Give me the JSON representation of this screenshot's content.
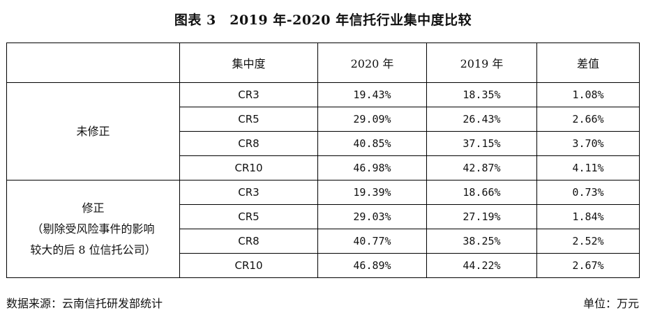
{
  "title": "图表 3　2019 年-2020 年信托行业集中度比较",
  "table": {
    "headers": [
      "",
      "集中度",
      "2020 年",
      "2019 年",
      "差值"
    ],
    "groups": [
      {
        "label_lines": [
          "未修正"
        ],
        "rows": [
          {
            "cr": "CR3",
            "y2020": "19.43%",
            "y2019": "18.35%",
            "diff": "1.08%"
          },
          {
            "cr": "CR5",
            "y2020": "29.09%",
            "y2019": "26.43%",
            "diff": "2.66%"
          },
          {
            "cr": "CR8",
            "y2020": "40.85%",
            "y2019": "37.15%",
            "diff": "3.70%"
          },
          {
            "cr": "CR10",
            "y2020": "46.98%",
            "y2019": "42.87%",
            "diff": "4.11%"
          }
        ]
      },
      {
        "label_lines": [
          "修正",
          "（剔除受风险事件的影响",
          "较大的后 8 位信托公司）"
        ],
        "rows": [
          {
            "cr": "CR3",
            "y2020": "19.39%",
            "y2019": "18.66%",
            "diff": "0.73%"
          },
          {
            "cr": "CR5",
            "y2020": "29.03%",
            "y2019": "27.19%",
            "diff": "1.84%"
          },
          {
            "cr": "CR8",
            "y2020": "40.77%",
            "y2019": "38.25%",
            "diff": "2.52%"
          },
          {
            "cr": "CR10",
            "y2020": "46.89%",
            "y2019": "44.22%",
            "diff": "2.67%"
          }
        ]
      }
    ]
  },
  "footer": {
    "source": "数据来源：云南信托研发部统计",
    "unit": "单位：万元"
  }
}
